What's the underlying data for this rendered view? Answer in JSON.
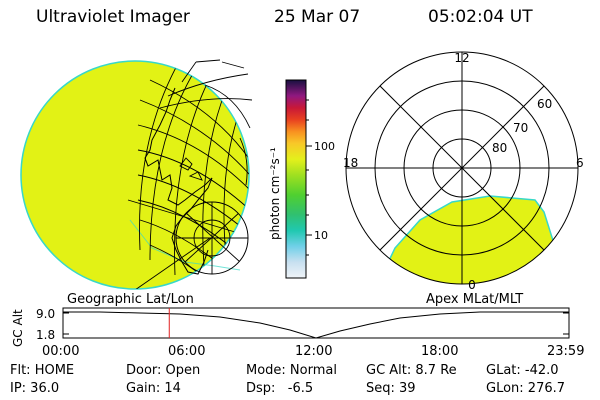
{
  "header": {
    "title": "Ultraviolet Imager",
    "date": "25 Mar 07",
    "time": "05:02:04 UT"
  },
  "colorbar": {
    "label": "photon cm⁻²s⁻¹",
    "ticks": [
      "100",
      "10"
    ]
  },
  "polar": {
    "hour_labels": [
      "12",
      "18",
      "6",
      "0"
    ],
    "lat_labels": [
      "60",
      "70",
      "80"
    ]
  },
  "map_labels": {
    "left": "Geographic Lat/Lon",
    "right": "Apex MLat/MLT"
  },
  "altitude_plot": {
    "axis_title": "GC Alt",
    "y_ticks": [
      "9.0",
      "1.8"
    ],
    "x_ticks": [
      "00:00",
      "06:00",
      "12:00",
      "18:00",
      "23:59"
    ],
    "current_time_fraction": 0.21
  },
  "status": {
    "row1": [
      "Flt: HOME",
      "Door: Open",
      "Mode: Normal",
      "GC Alt: 8.7 Re",
      "GLat: -42.0"
    ],
    "row2": [
      "IP: 36.0",
      "Gain: 14",
      "Dsp:   -6.5",
      "Seq: 39",
      "GLon: 276.7"
    ]
  },
  "colors": {
    "aurora_fill": "#e2f215",
    "aurora_edge": "#38d8c8",
    "time_marker": "#e02020"
  }
}
